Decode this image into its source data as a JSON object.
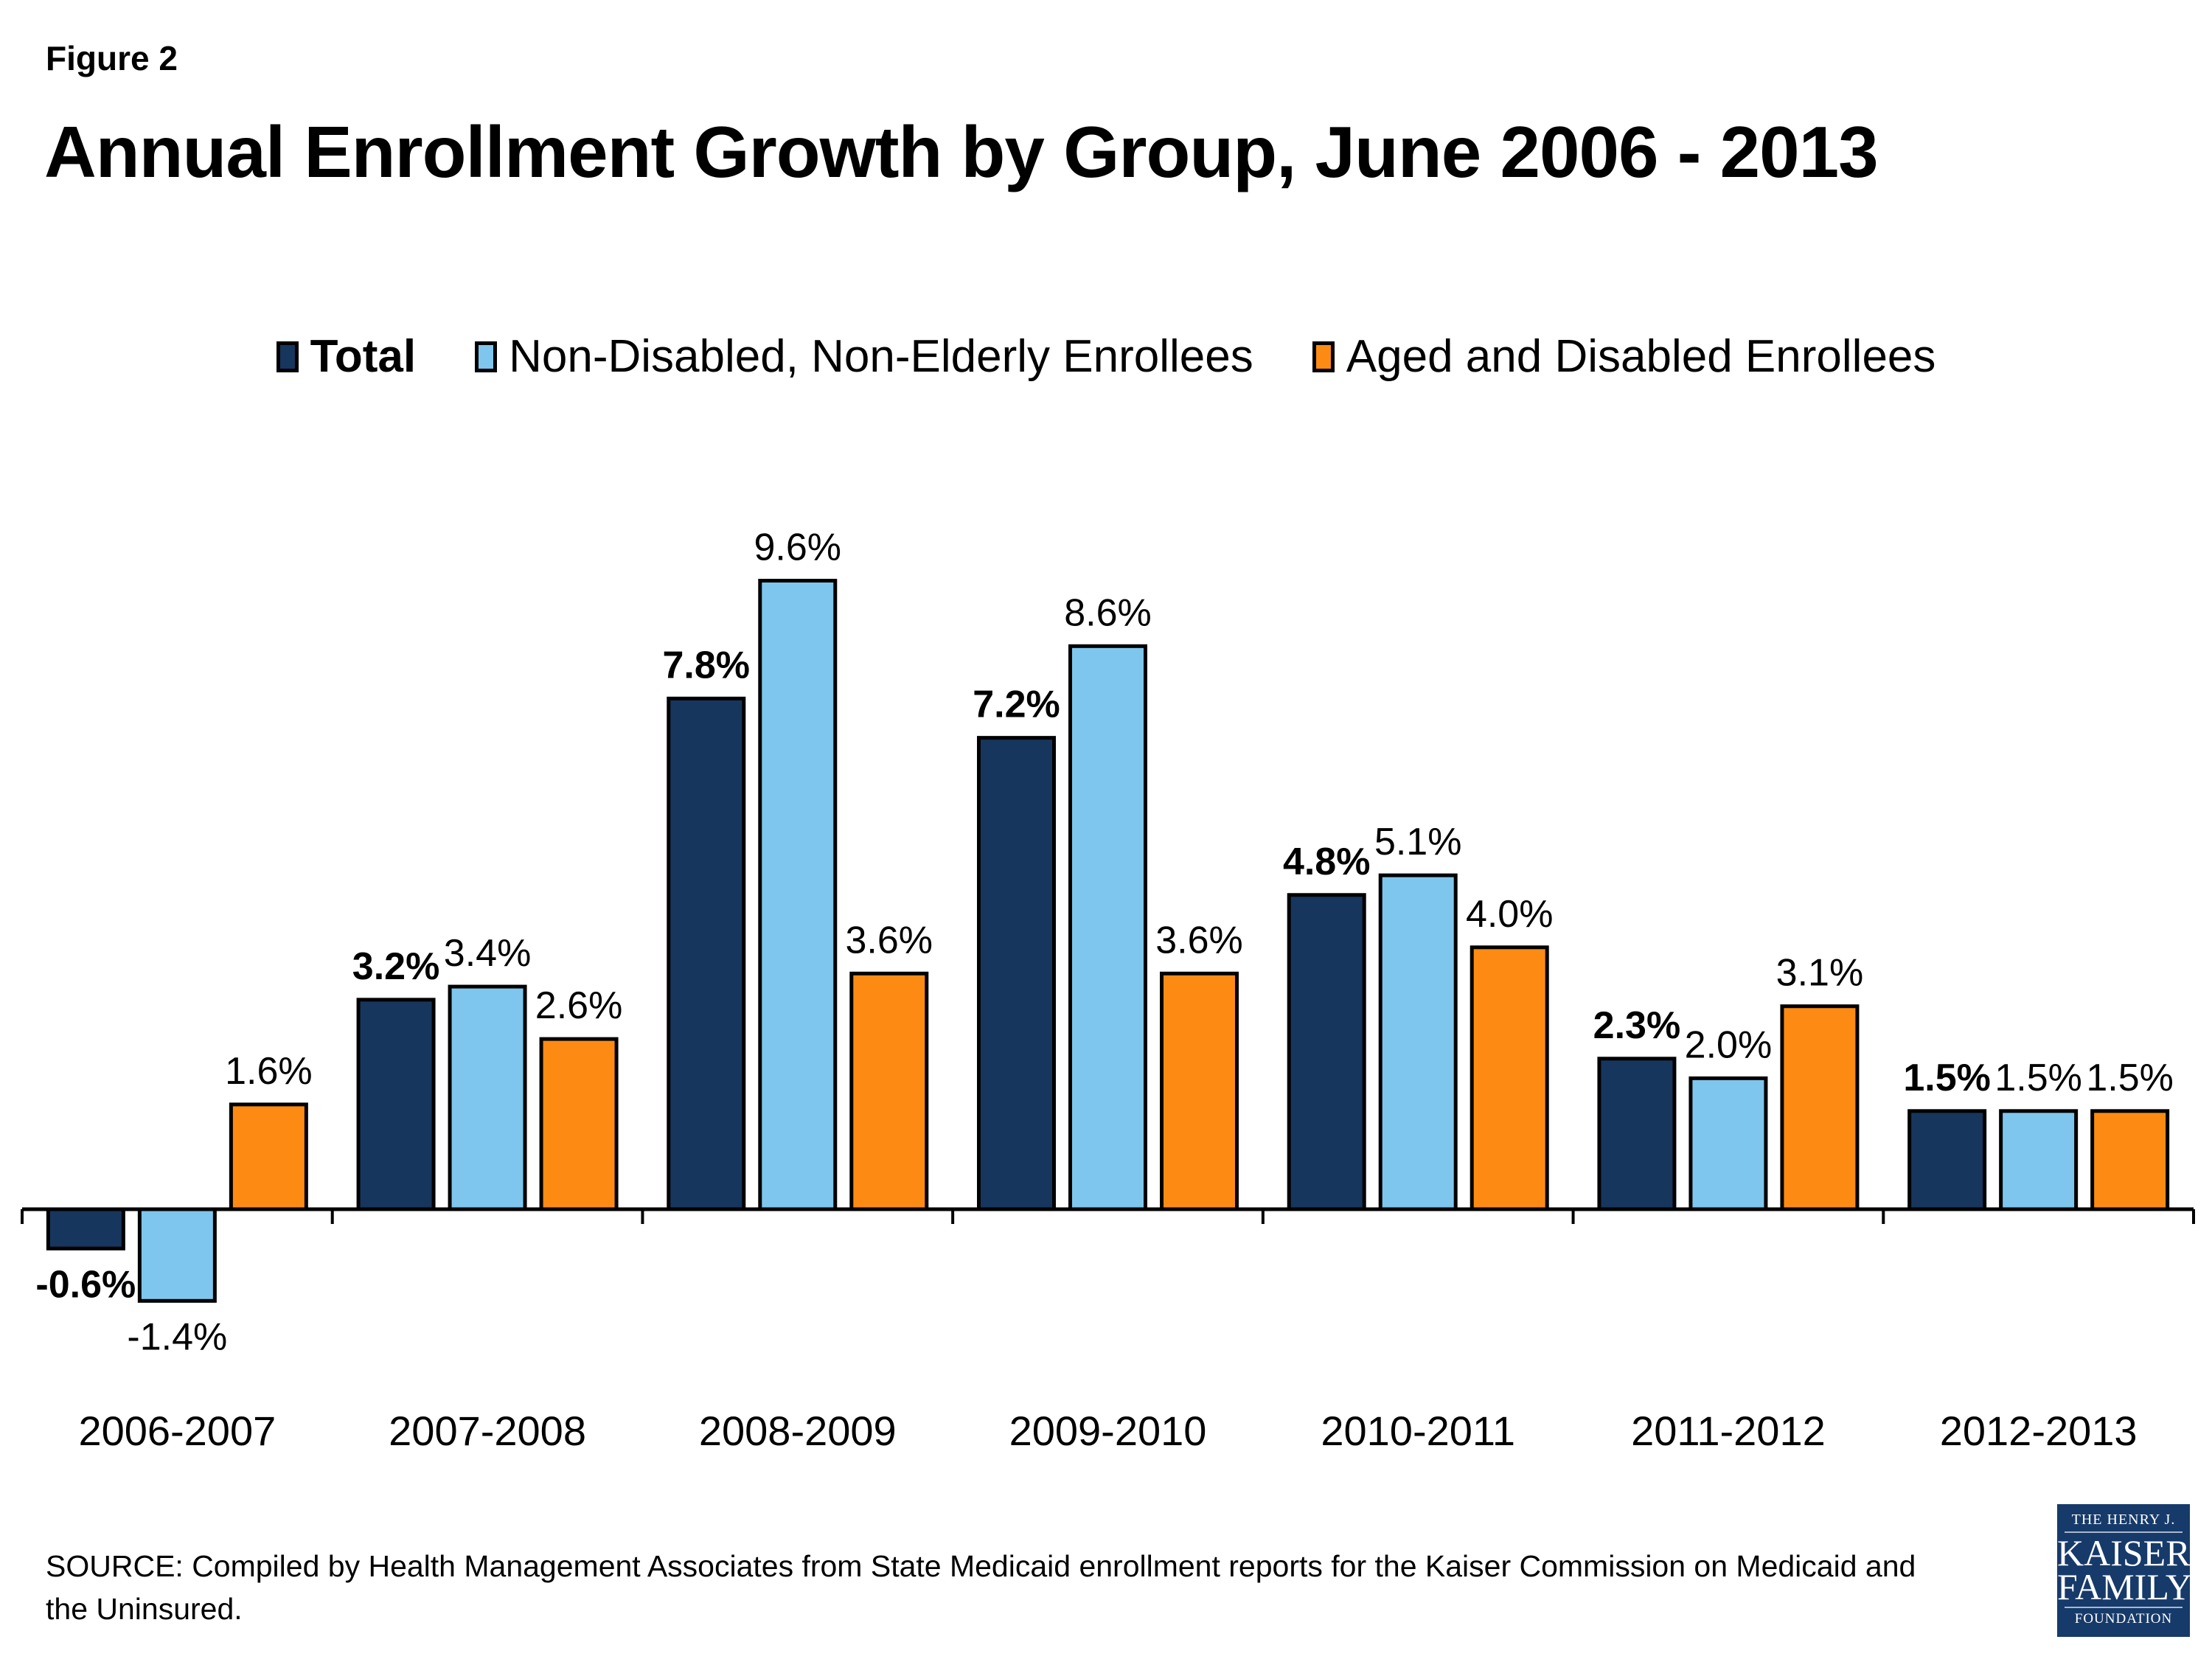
{
  "figure_label": "Figure 2",
  "chart_data": {
    "type": "bar",
    "title": "Annual Enrollment Growth by Group, June 2006 - 2013",
    "xlabel": "",
    "ylabel": "",
    "grid": false,
    "legend_position": "top-center",
    "categories": [
      "2006-2007",
      "2007-2008",
      "2008-2009",
      "2009-2010",
      "2010-2011",
      "2011-2012",
      "2012-2013"
    ],
    "series": [
      {
        "name": "Total",
        "color": "#17365d",
        "label_bold": true,
        "values": [
          -0.6,
          3.2,
          7.8,
          7.2,
          4.8,
          2.3,
          1.5
        ],
        "labels": [
          "-0.6%",
          "3.2%",
          "7.8%",
          "7.2%",
          "4.8%",
          "2.3%",
          "1.5%"
        ]
      },
      {
        "name": "Non-Disabled, Non-Elderly Enrollees",
        "color": "#7ec6ed",
        "label_bold": false,
        "values": [
          -1.4,
          3.4,
          9.6,
          8.6,
          5.1,
          2.0,
          1.5
        ],
        "labels": [
          "-1.4%",
          "3.4%",
          "9.6%",
          "8.6%",
          "5.1%",
          "2.0%",
          "1.5%"
        ]
      },
      {
        "name": "Aged and Disabled Enrollees",
        "color": "#fd8b13",
        "label_bold": false,
        "values": [
          1.6,
          2.6,
          3.6,
          3.6,
          4.0,
          3.1,
          1.5
        ],
        "labels": [
          "1.6%",
          "2.6%",
          "3.6%",
          "3.6%",
          "4.0%",
          "3.1%",
          "1.5%"
        ]
      }
    ],
    "ylim": [
      -2.5,
      11
    ]
  },
  "source": "SOURCE: Compiled by Health Management Associates from State Medicaid enrollment reports for the Kaiser Commission on Medicaid and the Uninsured.",
  "logo": {
    "line1": "THE HENRY J.",
    "line2": "KAISER",
    "line3": "FAMILY",
    "line4": "FOUNDATION"
  }
}
